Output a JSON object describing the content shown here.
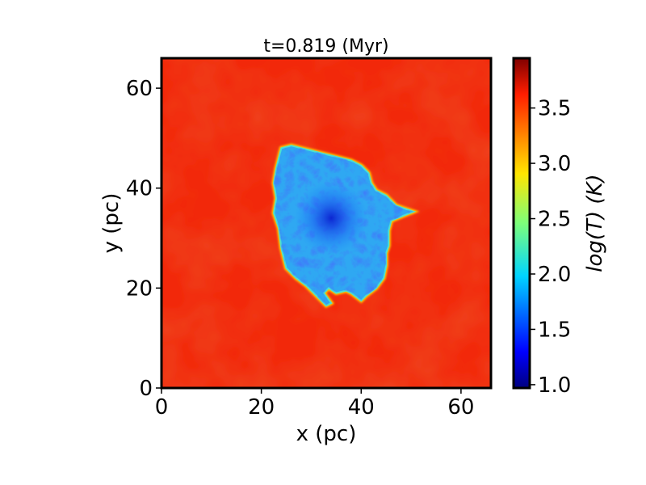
{
  "chart_data": {
    "type": "heatmap",
    "title": "t=0.819 (Myr)",
    "xlabel": "x (pc)",
    "ylabel": "y (pc)",
    "xlim": [
      0,
      66
    ],
    "ylim": [
      0,
      66
    ],
    "xticks": [
      0,
      20,
      40,
      60
    ],
    "yticks": [
      0,
      20,
      40,
      60
    ],
    "colorbar": {
      "label": "log(T) (K)",
      "range": [
        0.97,
        3.95
      ],
      "ticks": [
        "1.0",
        "1.5",
        "2.0",
        "2.5",
        "3.0",
        "3.5"
      ],
      "colormap": "jet"
    },
    "cold_region": {
      "description_value_range": [
        1.0,
        2.3
      ],
      "outline": [
        [
          24,
          48
        ],
        [
          26,
          48.5
        ],
        [
          28,
          48
        ],
        [
          30,
          47.5
        ],
        [
          32,
          47
        ],
        [
          34,
          46.5
        ],
        [
          36,
          46
        ],
        [
          38,
          45.5
        ],
        [
          40,
          44.5
        ],
        [
          41.5,
          43
        ],
        [
          42,
          41
        ],
        [
          43,
          39.5
        ],
        [
          45,
          38.5
        ],
        [
          47,
          36.5
        ],
        [
          49,
          35.8
        ],
        [
          50.5,
          35.3
        ],
        [
          48.5,
          34.5
        ],
        [
          46,
          33.5
        ],
        [
          45.5,
          31.5
        ],
        [
          45.5,
          28.5
        ],
        [
          45,
          27
        ],
        [
          45,
          24.5
        ],
        [
          44.5,
          22
        ],
        [
          43,
          20
        ],
        [
          41,
          18.5
        ],
        [
          40,
          17.5
        ],
        [
          38,
          19
        ],
        [
          37,
          19.5
        ],
        [
          35,
          19
        ],
        [
          33.5,
          20
        ],
        [
          32.5,
          19
        ],
        [
          34,
          17
        ],
        [
          33,
          16.5
        ],
        [
          31,
          18.5
        ],
        [
          29,
          20.5
        ],
        [
          27,
          22
        ],
        [
          25,
          24
        ],
        [
          24,
          28
        ],
        [
          23.5,
          32
        ],
        [
          22.5,
          35
        ],
        [
          23,
          38
        ],
        [
          22.5,
          41
        ],
        [
          23,
          44
        ],
        [
          23.5,
          46
        ]
      ],
      "core": [
        34,
        34
      ]
    },
    "background_value": 3.7
  },
  "ticks_x_labels": [
    "0",
    "20",
    "40",
    "60"
  ],
  "ticks_y_labels": [
    "0",
    "20",
    "40",
    "60"
  ]
}
